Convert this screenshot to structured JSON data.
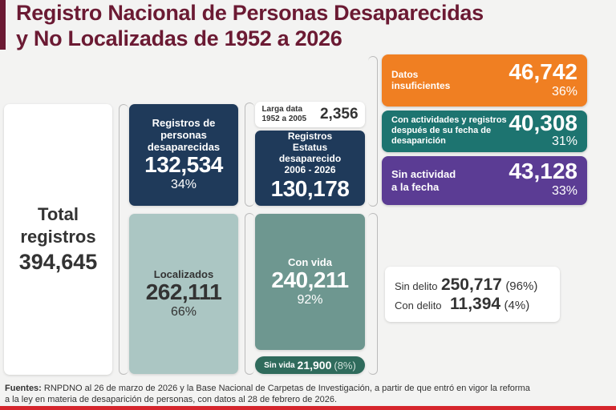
{
  "title": {
    "line1": "Registro Nacional de Personas Desaparecidas",
    "line2": "y No Localizadas de 1952 a 2026"
  },
  "total": {
    "label1": "Total",
    "label2": "registros",
    "value": "394,645"
  },
  "desaparecidas": {
    "label": "Registros de personas desaparecidas",
    "value": "132,534",
    "pct": "34%"
  },
  "localizados": {
    "label": "Localizados",
    "value": "262,111",
    "pct": "66%"
  },
  "larga_data": {
    "label1": "Larga data",
    "label2": "1952 a 2005",
    "value": "2,356"
  },
  "estatus": {
    "label": "Registros Estatus desaparecido 2006 - 2026",
    "value": "130,178"
  },
  "con_vida": {
    "label": "Con vida",
    "value": "240,211",
    "pct": "92%"
  },
  "sin_vida": {
    "label": "Sin vida",
    "value": "21,900",
    "pct": "(8%)"
  },
  "categories": [
    {
      "label": "Datos insuficientes",
      "value": "46,742",
      "pct": "36%",
      "color": "#f07f22"
    },
    {
      "label": "Con actividades y registros después de su fecha de desaparición",
      "value": "40,308",
      "pct": "31%",
      "color": "#1d7470"
    },
    {
      "label": "Sin actividad a la fecha",
      "value": "43,128",
      "pct": "33%",
      "color": "#5b3c94"
    }
  ],
  "delito": {
    "sin": {
      "label": "Sin delito",
      "value": "250,717",
      "pct": "(96%)"
    },
    "con": {
      "label": "Con delito",
      "value": "11,394",
      "pct": "(4%)"
    }
  },
  "footer": {
    "bold": "Fuentes:",
    "text": " RNPDNO al 26 de marzo de 2026 y la Base Nacional de Carpetas de Investigación, a partir de que entró en vigor la reforma a la ley en materia de desaparición de personas, con datos al 28 de febrero de 2026."
  }
}
